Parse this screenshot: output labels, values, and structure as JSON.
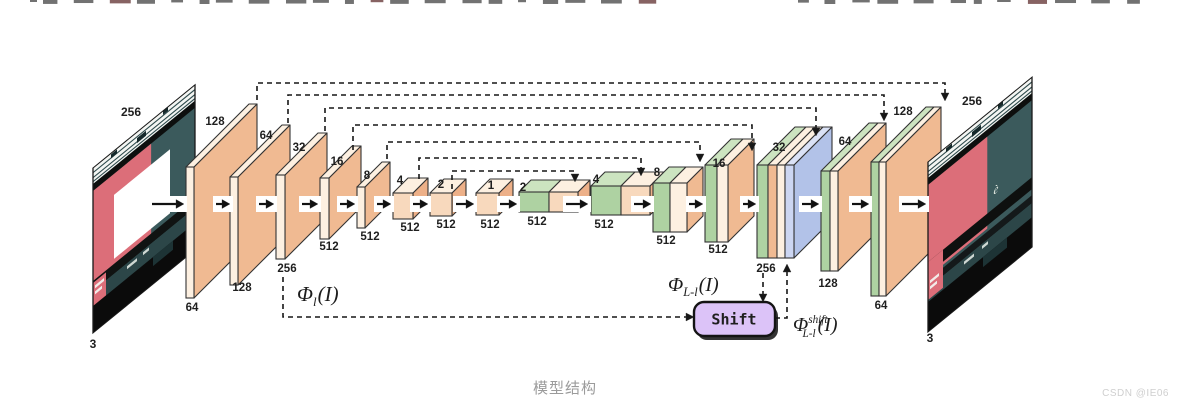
{
  "page": {
    "caption": "模型结构",
    "watermark": "CSDN @IE06",
    "background": "#ffffff"
  },
  "figure": {
    "input_image": {
      "top_label": "256",
      "bottom_label": "3"
    },
    "output_image": {
      "top_label": "256",
      "bottom_label": "3"
    },
    "encoder_blocks": [
      {
        "size": "128",
        "channels": "64"
      },
      {
        "size": "64",
        "channels": "128"
      },
      {
        "size": "32",
        "channels": "256"
      },
      {
        "size": "16",
        "channels": "512"
      },
      {
        "size": "8",
        "channels": "512"
      },
      {
        "size": "4",
        "channels": "512"
      },
      {
        "size": "2",
        "channels": "512"
      },
      {
        "size": "1",
        "channels": "512"
      }
    ],
    "decoder_blocks": [
      {
        "size": "2",
        "channels": "512"
      },
      {
        "size": "4",
        "channels": "512"
      },
      {
        "size": "8",
        "channels": "512"
      },
      {
        "size": "16",
        "channels": "512"
      },
      {
        "size": "32",
        "channels": "256"
      },
      {
        "size": "64",
        "channels": "128"
      },
      {
        "size": "128",
        "channels": "64"
      }
    ],
    "shift_box_label": "Shift",
    "phi_l": {
      "base": "Φ",
      "sub": "l",
      "tail": "(I)"
    },
    "phi_Ll": {
      "base": "Φ",
      "sub": "L-l",
      "tail": "(I)"
    },
    "phi_shift": {
      "base": "Φ",
      "sup": "shift",
      "sub": "L-l",
      "tail": "(I)"
    },
    "colors": {
      "peach_face": "#f0ba92",
      "cube_front": "#f8d9bd",
      "cube_side": "#edb088",
      "cream": "#fdf0e1",
      "green": "#aed2a2",
      "green_top": "#cce4c0",
      "blue_face": "#b2c2e8",
      "blue_front": "#ccd6f2",
      "blue_top": "#dbe2f6",
      "shift_fill": "#dcc3f8",
      "stroke": "#333333",
      "label_color": "#1f1f1f",
      "photo_teal": "#3b5a5c",
      "photo_pink": "#dc6e79",
      "photo_black": "#0d0f0e"
    }
  }
}
